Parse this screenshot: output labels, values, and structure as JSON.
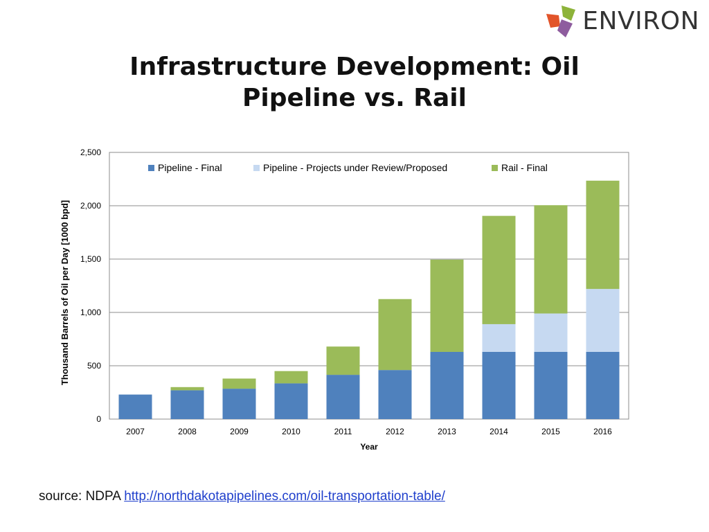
{
  "logo": {
    "text": "ENVIRON"
  },
  "title": {
    "line1": "Infrastructure Development: Oil",
    "line2": "Pipeline vs. Rail"
  },
  "source": {
    "label": "source: NDPA",
    "link_text": "http://northdakotapipelines.com/oil-transportation-table/"
  },
  "chart_data": {
    "type": "stacked-bar",
    "title": "",
    "xlabel": "Year",
    "ylabel": "Thousand Barrels of Oil per Day [1000 bpd]",
    "ylim": [
      0,
      2500
    ],
    "yticks": [
      0,
      500,
      1000,
      1500,
      2000,
      2500
    ],
    "ytick_labels": [
      "0",
      "500",
      "1,000",
      "1,500",
      "2,000",
      "2,500"
    ],
    "categories": [
      "2007",
      "2008",
      "2009",
      "2010",
      "2011",
      "2012",
      "2013",
      "2014",
      "2015",
      "2016"
    ],
    "legend_position": "top",
    "grid": true,
    "series": [
      {
        "name": "Pipeline - Final",
        "color": "#4F81BD",
        "values": [
          230,
          270,
          285,
          335,
          415,
          460,
          630,
          630,
          630,
          630
        ]
      },
      {
        "name": "Pipeline - Projects under Review/Proposed",
        "color": "#C6D9F1",
        "values": [
          0,
          0,
          0,
          0,
          0,
          0,
          0,
          260,
          360,
          590
        ]
      },
      {
        "name": "Rail - Final",
        "color": "#9BBB59",
        "values": [
          0,
          30,
          95,
          115,
          265,
          665,
          865,
          1015,
          1015,
          1015
        ]
      }
    ]
  }
}
